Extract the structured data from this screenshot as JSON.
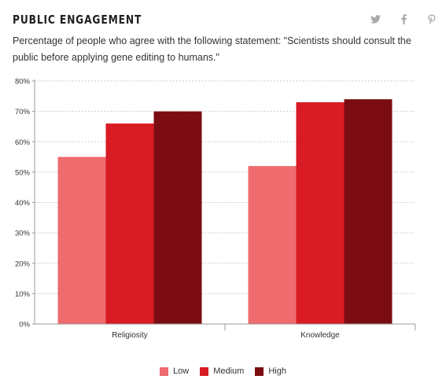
{
  "header": {
    "title": "PUBLIC ENGAGEMENT",
    "subtitle": "Percentage of people who agree with the following statement: \"Scientists should consult the public before applying gene editing to humans.\""
  },
  "share": {
    "icons": [
      "twitter-icon",
      "facebook-icon",
      "pinterest-icon"
    ],
    "icon_color": "#aaaaaa"
  },
  "chart_data": {
    "type": "bar",
    "categories": [
      "Religiosity",
      "Knowledge"
    ],
    "series": [
      {
        "name": "Low",
        "values": [
          55,
          52
        ],
        "color": "#ee6b6e"
      },
      {
        "name": "Medium",
        "values": [
          66,
          73
        ],
        "color": "#d81b24"
      },
      {
        "name": "High",
        "values": [
          70,
          74
        ],
        "color": "#7b0d12"
      }
    ],
    "yticks": [
      "0%",
      "10%",
      "20%",
      "30%",
      "40%",
      "50%",
      "60%",
      "70%",
      "80%"
    ],
    "ylim": [
      0,
      80
    ],
    "grid": true,
    "legend_position": "bottom-center"
  }
}
